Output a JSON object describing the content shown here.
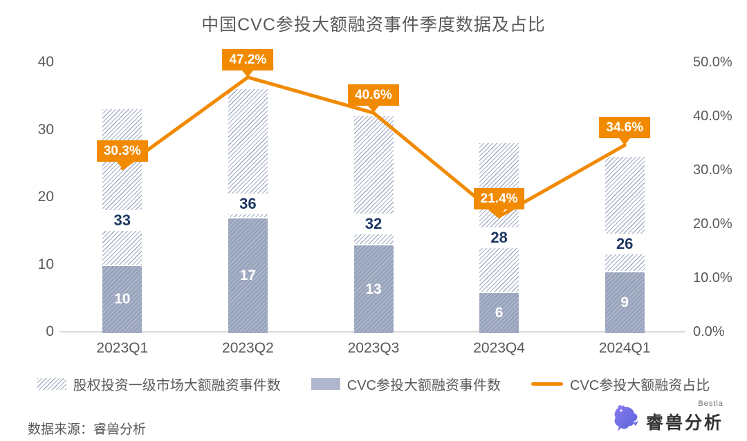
{
  "source": "数据来源：睿兽分析",
  "logo": {
    "brand": "睿兽分析",
    "sub": "Bestla",
    "icon": "beast-icon"
  },
  "colors": {
    "orange": "#F18A00",
    "navy_label": "#1F3864",
    "bar_solid": "#98A3BC",
    "hatch_line": "#A2ADC4",
    "axis_text": "#595959",
    "baseline": "#D9D9D9",
    "logo_purple_1": "#8B7BF0",
    "logo_purple_2": "#5463D8"
  },
  "chart_data": {
    "type": "bar",
    "title": "中国CVC参投大额融资事件季度数据及占比",
    "categories": [
      "2023Q1",
      "2023Q2",
      "2023Q3",
      "2023Q4",
      "2024Q1"
    ],
    "series": [
      {
        "name": "股权投资一级市场大额融资事件数",
        "type": "bar",
        "style": "hatched",
        "values": [
          33,
          36,
          32,
          28,
          26
        ]
      },
      {
        "name": "CVC参投大额融资事件数",
        "type": "bar",
        "style": "solid",
        "values": [
          10,
          17,
          13,
          6,
          9
        ]
      },
      {
        "name": "CVC参投大额融资占比",
        "type": "line",
        "axis": "right",
        "values": [
          30.3,
          47.2,
          40.6,
          21.4,
          34.6
        ],
        "labels": [
          "30.3%",
          "47.2%",
          "40.6%",
          "21.4%",
          "34.6%"
        ],
        "unit": "%"
      }
    ],
    "left_axis": {
      "ticks": [
        0,
        10,
        20,
        30,
        40
      ],
      "range": [
        0,
        40
      ]
    },
    "right_axis": {
      "ticks": [
        "0.0%",
        "10.0%",
        "20.0%",
        "30.0%",
        "40.0%",
        "50.0%"
      ],
      "values": [
        0,
        10,
        20,
        30,
        40,
        50
      ],
      "range": [
        0,
        50
      ]
    },
    "grid": false,
    "legend_position": "bottom"
  }
}
